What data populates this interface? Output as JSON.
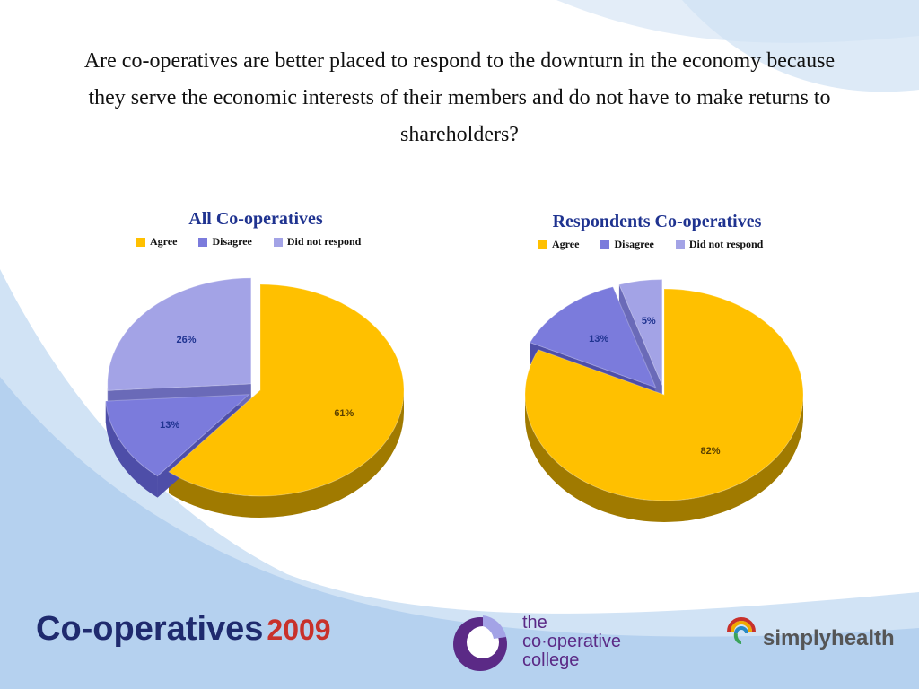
{
  "question": "Are co-operatives are better placed to respond to the downturn in the economy because they serve the economic interests of their members and do not have to make returns to shareholders?",
  "colors": {
    "agree": "#ffc000",
    "disagree": "#7b7bdc",
    "no_response": "#a3a3e6",
    "title": "#1f3390"
  },
  "chart_data": [
    {
      "type": "pie",
      "title": "All Co-operatives",
      "legend": [
        "Agree",
        "Disagree",
        "Did not respond"
      ],
      "slices": [
        {
          "label": "Agree",
          "value": 61,
          "text": "61%"
        },
        {
          "label": "Disagree",
          "value": 13,
          "text": "13%"
        },
        {
          "label": "Did not respond",
          "value": 26,
          "text": "26%"
        }
      ]
    },
    {
      "type": "pie",
      "title": "Respondents Co-operatives",
      "legend": [
        "Agree",
        "Disagree",
        "Did not respond"
      ],
      "slices": [
        {
          "label": "Agree",
          "value": 82,
          "text": "82%"
        },
        {
          "label": "Disagree",
          "value": 13,
          "text": "13%"
        },
        {
          "label": "Did not respond",
          "value": 5,
          "text": "5%"
        }
      ]
    }
  ],
  "footer": {
    "coop_logo": "Co-operatives",
    "coop_year": "2009",
    "college_line1": "the",
    "college_line2": "co·operative",
    "college_line3": "college",
    "simply": "simplyhealth"
  }
}
